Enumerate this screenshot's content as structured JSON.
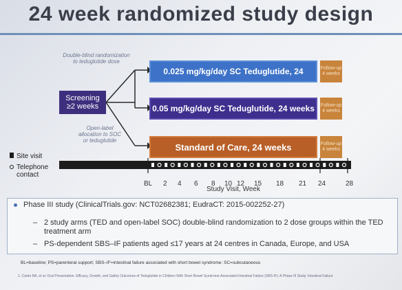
{
  "title": "24 week randomized study design",
  "screening": {
    "line1": "Screening",
    "line2": "≥2 weeks"
  },
  "notes": {
    "double_blind": [
      "Double-blind randomization",
      "to teduglutide dose"
    ],
    "open_label": [
      "Open-label",
      "allocation to SOC",
      "or teduglutide"
    ]
  },
  "arms": [
    {
      "label": "0.025 mg/kg/day SC Teduglutide, 24",
      "color": "#3d72c8"
    },
    {
      "label": "0.05 mg/kg/day SC Teduglutide, 24 weeks",
      "color": "#3e2f8e"
    },
    {
      "label": "Standard of Care, 24 weeks",
      "color": "#b85f28"
    }
  ],
  "followup": {
    "line1": "Follow-up",
    "line2": "4 weeks"
  },
  "legend": {
    "site_visit": "Site visit",
    "telephone": "Telephone",
    "telephone2": "contact"
  },
  "timeline": {
    "ticks": [
      "BL",
      "2",
      "4",
      "6",
      "8",
      "10",
      "12",
      "15",
      "18",
      "21",
      "24",
      "28"
    ],
    "xlabel": "Study Visit, Week"
  },
  "bullets": {
    "main": "Phase III study (ClinicalTrials.gov: NCT02682381; EudraCT: 2015-002252-27)",
    "sub1": "2 study arms (TED and open-label SOC) double-blind randomization to 2 dose groups within the TED treatment arm",
    "sub2": "PS-dependent SBS–IF patients aged ≤17 years at 24 centres in Canada, Europe, and USA"
  },
  "footnote": "BL=baseline; PS=parenteral support; SBS–IF=intestinal failure associated with short bowel syndrome; SC=subcutaneous",
  "citation": "1. Carter BA, et al. Oral Presentation. Efficacy, Growth, and Safety Outcomes of Teduglutide in Children With Short Bowel Syndrome-Associated Intestinal Failure (SBS-IF): A Phase III Study. Intestinal Failure"
}
